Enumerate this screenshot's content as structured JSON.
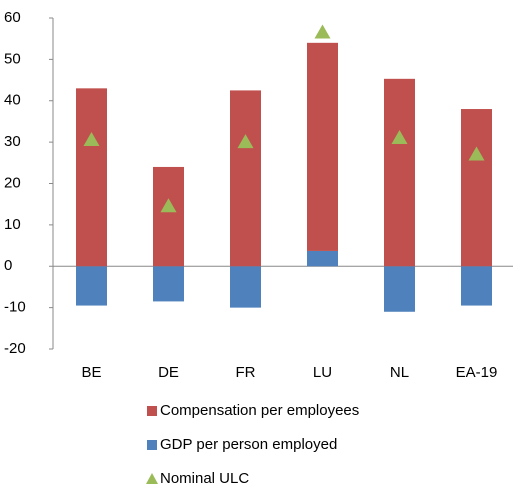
{
  "chart_data": {
    "type": "bar",
    "stacked": true,
    "categories": [
      "BE",
      "DE",
      "FR",
      "LU",
      "NL",
      "EA-19"
    ],
    "series": [
      {
        "name": "Compensation per employees",
        "color": "#c0504d",
        "values": [
          43,
          24,
          42.5,
          50.3,
          45.3,
          38
        ]
      },
      {
        "name": "GDP per person employed",
        "color": "#4f81bd",
        "values": [
          -9.5,
          -8.5,
          -10,
          3.7,
          -11,
          -9.5
        ]
      },
      {
        "name": "Nominal ULC",
        "color": "#9bbb59",
        "type": "scatter",
        "marker": "triangle",
        "values": [
          30.5,
          14.5,
          30,
          56.5,
          31,
          27
        ]
      }
    ],
    "ylim": [
      -20,
      60
    ],
    "yticks": [
      -20,
      -10,
      0,
      10,
      20,
      30,
      40,
      50,
      60
    ],
    "grid": false,
    "legend": "bottom"
  }
}
